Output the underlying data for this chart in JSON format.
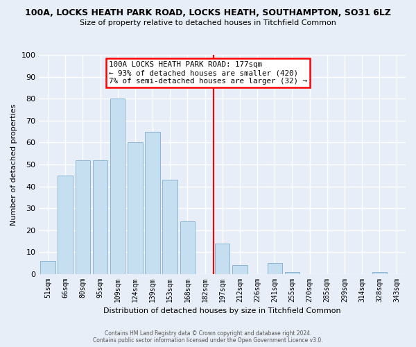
{
  "title_line1": "100A, LOCKS HEATH PARK ROAD, LOCKS HEATH, SOUTHAMPTON, SO31 6LZ",
  "title_line2": "Size of property relative to detached houses in Titchfield Common",
  "xlabel": "Distribution of detached houses by size in Titchfield Common",
  "ylabel": "Number of detached properties",
  "bar_labels": [
    "51sqm",
    "66sqm",
    "80sqm",
    "95sqm",
    "109sqm",
    "124sqm",
    "139sqm",
    "153sqm",
    "168sqm",
    "182sqm",
    "197sqm",
    "212sqm",
    "226sqm",
    "241sqm",
    "255sqm",
    "270sqm",
    "285sqm",
    "299sqm",
    "314sqm",
    "328sqm",
    "343sqm"
  ],
  "bar_values": [
    6,
    45,
    52,
    52,
    80,
    60,
    65,
    43,
    24,
    0,
    14,
    4,
    0,
    5,
    1,
    0,
    0,
    0,
    0,
    1,
    0
  ],
  "bar_color": "#c6dff0",
  "bar_edge_color": "#8ab4d4",
  "vline_x": 9.5,
  "vline_color": "red",
  "annotation_title": "100A LOCKS HEATH PARK ROAD: 177sqm",
  "annotation_line1": "← 93% of detached houses are smaller (420)",
  "annotation_line2": "7% of semi-detached houses are larger (32) →",
  "annotation_box_color": "white",
  "annotation_box_edge": "red",
  "ylim": [
    0,
    100
  ],
  "yticks": [
    0,
    10,
    20,
    30,
    40,
    50,
    60,
    70,
    80,
    90,
    100
  ],
  "footer_line1": "Contains HM Land Registry data © Crown copyright and database right 2024.",
  "footer_line2": "Contains public sector information licensed under the Open Government Licence v3.0.",
  "background_color": "#e8eef8"
}
